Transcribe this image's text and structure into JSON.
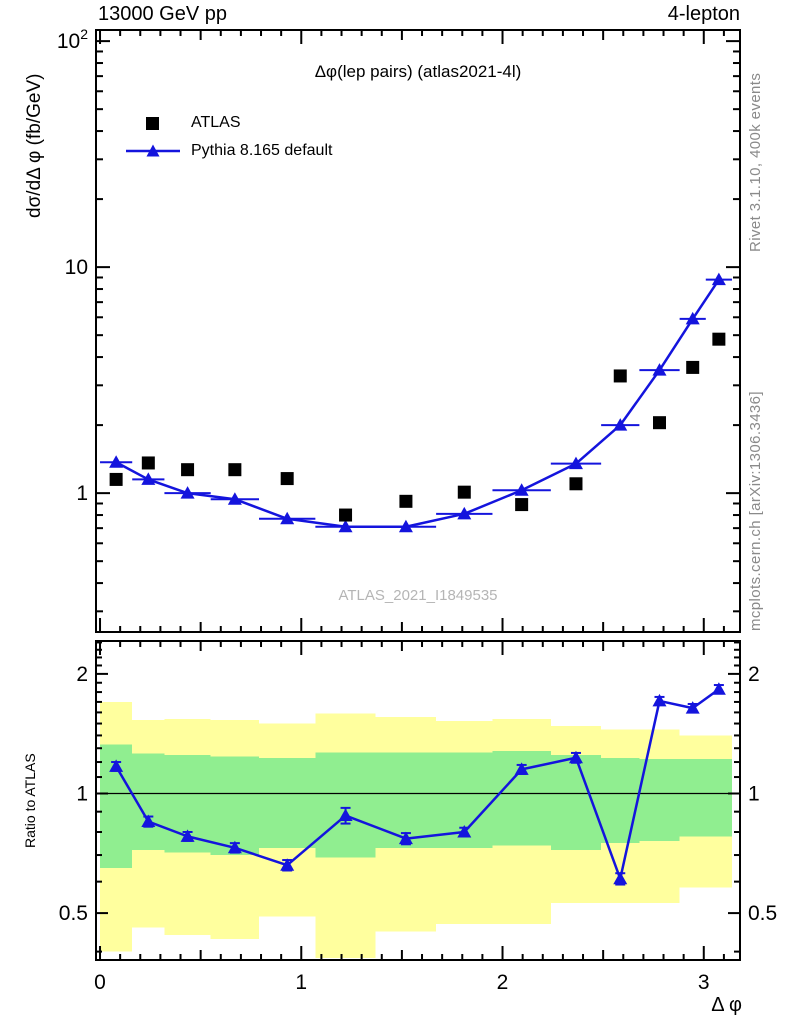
{
  "header": {
    "left": "13000 GeV pp",
    "right": "4-lepton"
  },
  "right_margin": {
    "rivet": "Rivet 3.1.10,  400k events",
    "mcplots": "mcplots.cern.ch [arXiv:1306.3436]"
  },
  "main_panel": {
    "title": "Δφ(lep pairs) (atlas2021-4l)",
    "ylabel": "dσ/dΔ φ (fb/GeV)",
    "watermark": "ATLAS_2021_I1849535",
    "legend": [
      {
        "label": "ATLAS",
        "marker": "square",
        "color": "#000000"
      },
      {
        "label": "Pythia 8.165 default",
        "marker": "triangle-line",
        "color": "#1414dd"
      }
    ]
  },
  "ratio_panel": {
    "ylabel": "Ratio to ATLAS"
  },
  "axes": {
    "xlabel": "Δ φ",
    "x_ticks": [
      {
        "v": 0,
        "label": "0"
      },
      {
        "v": 1,
        "label": "1"
      },
      {
        "v": 2,
        "label": "2"
      },
      {
        "v": 3,
        "label": "3"
      }
    ],
    "main_y_ticks": [
      {
        "v": 1,
        "label": "1"
      },
      {
        "v": 10,
        "label": "10"
      },
      {
        "v": 100,
        "label": "10",
        "sup": "2"
      }
    ],
    "ratio_y_ticks": [
      {
        "v": 0.5,
        "label": "0.5"
      },
      {
        "v": 1,
        "label": "1"
      },
      {
        "v": 2,
        "label": "2"
      }
    ]
  },
  "colors": {
    "mc_blue": "#1414dd",
    "band_green": "#90ee90",
    "band_yellow": "#ffff9e",
    "frame": "#000000",
    "gray_text": "#8a8a8a",
    "watermark": "#b5b5b5"
  },
  "chart_data": {
    "type": "line",
    "title": "Δφ(lep pairs) (atlas2021-4l)",
    "xlabel": "Δ φ",
    "ylabel": "dσ/dΔ φ (fb/GeV)",
    "x": {
      "min": -0.02,
      "max": 3.18
    },
    "main": {
      "scale": "log",
      "ymin": 0.243,
      "ymax": 112
    },
    "ratio": {
      "scale": "log",
      "ymin": 0.381,
      "ymax": 2.42,
      "ylabel": "Ratio to ATLAS"
    },
    "bin_edges": [
      0.0,
      0.16,
      0.32,
      0.55,
      0.79,
      1.07,
      1.37,
      1.67,
      1.95,
      2.24,
      2.49,
      2.68,
      2.88,
      3.01,
      3.14
    ],
    "series": [
      {
        "name": "ATLAS",
        "role": "data",
        "marker": "square",
        "color": "#000000",
        "y": [
          1.15,
          1.36,
          1.27,
          1.27,
          1.16,
          0.8,
          0.92,
          1.01,
          0.89,
          1.1,
          3.3,
          2.05,
          3.6,
          4.8
        ]
      },
      {
        "name": "Pythia 8.165 default",
        "role": "mc",
        "marker": "triangle",
        "color": "#1414dd",
        "y": [
          1.37,
          1.15,
          1.0,
          0.94,
          0.77,
          0.71,
          0.71,
          0.81,
          1.03,
          1.35,
          2.0,
          3.5,
          5.9,
          8.8
        ]
      }
    ],
    "ratio_series": {
      "name": "Pythia/ATLAS",
      "y": [
        1.17,
        0.85,
        0.78,
        0.73,
        0.66,
        0.88,
        0.77,
        0.8,
        1.15,
        1.23,
        0.61,
        1.71,
        1.64,
        1.83
      ],
      "err": [
        0.03,
        0.025,
        0.02,
        0.02,
        0.02,
        0.04,
        0.025,
        0.02,
        0.03,
        0.035,
        0.02,
        0.04,
        0.04,
        0.045
      ]
    },
    "ratio_bands": {
      "green_hi": [
        1.33,
        1.26,
        1.25,
        1.24,
        1.23,
        1.27,
        1.27,
        1.27,
        1.28,
        1.25,
        1.23,
        1.22,
        1.22,
        1.22
      ],
      "green_lo": [
        0.65,
        0.72,
        0.71,
        0.7,
        0.73,
        0.69,
        0.73,
        0.73,
        0.74,
        0.72,
        0.75,
        0.76,
        0.78,
        0.78
      ],
      "yellow_hi": [
        1.7,
        1.53,
        1.54,
        1.53,
        1.5,
        1.59,
        1.56,
        1.52,
        1.54,
        1.48,
        1.45,
        1.45,
        1.4,
        1.4
      ],
      "yellow_lo": [
        0.4,
        0.46,
        0.44,
        0.43,
        0.49,
        0.385,
        0.45,
        0.47,
        0.47,
        0.53,
        0.53,
        0.53,
        0.58,
        0.58
      ]
    }
  }
}
